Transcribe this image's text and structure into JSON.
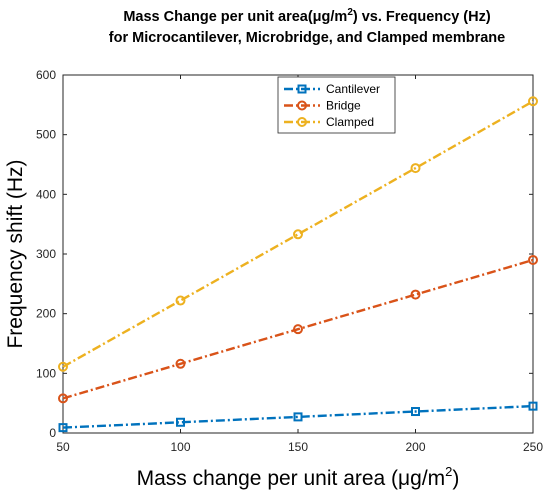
{
  "chart_data": {
    "type": "line",
    "title_line1": "Mass Change per unit area(μg/m",
    "title_sup": "2",
    "title_line1_end": ") vs. Frequency (Hz)",
    "title_line2": "for Microcantilever, Microbridge, and Clamped membrane",
    "xlabel": "Mass change per unit area (μg/m",
    "xlabel_sup": "2",
    "xlabel_end": ")",
    "ylabel": "Frequency shift (Hz)",
    "x": [
      50,
      100,
      150,
      200,
      250
    ],
    "xlim": [
      50,
      250
    ],
    "ylim": [
      0,
      600
    ],
    "xticks": [
      50,
      100,
      150,
      200,
      250
    ],
    "yticks": [
      0,
      100,
      200,
      300,
      400,
      500,
      600
    ],
    "grid": false,
    "legend_position": "top-center",
    "series": [
      {
        "name": "Cantilever",
        "values": [
          9,
          18,
          27,
          36,
          45
        ],
        "color": "#0072BD",
        "marker": "square"
      },
      {
        "name": "Bridge",
        "values": [
          58,
          116,
          174,
          232,
          290
        ],
        "color": "#D95319",
        "marker": "circle"
      },
      {
        "name": "Clamped",
        "values": [
          111,
          222,
          333,
          444,
          556
        ],
        "color": "#EDB120",
        "marker": "circle"
      }
    ]
  }
}
